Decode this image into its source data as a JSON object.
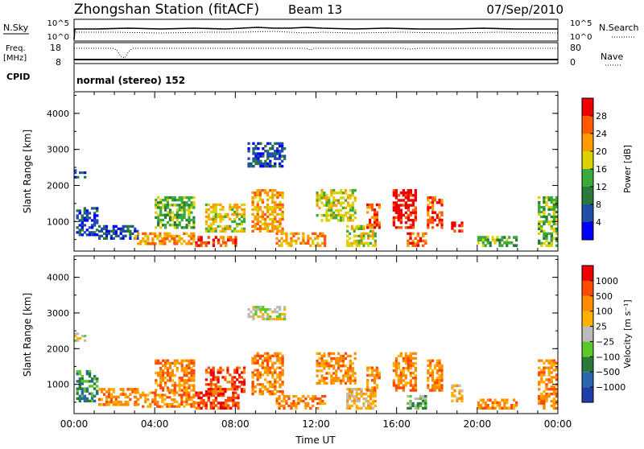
{
  "header": {
    "station": "Zhongshan Station (fitACF)",
    "beam": "Beam 13",
    "date": "07/Sep/2010"
  },
  "summary_panels": {
    "nsky_label": "N.Sky",
    "nsky_ticks": [
      "10^5",
      "10^0"
    ],
    "nsearch_label": "N.Search",
    "freq_label": "Freq.",
    "freq_unit": "[MHz]",
    "freq_ticks": [
      "18",
      "8"
    ],
    "nave_ticks": [
      "80",
      "0"
    ],
    "nave_label": "Nave",
    "cpid_label": "CPID",
    "cpid_text": "normal (stereo) 152"
  },
  "colors": {
    "power_scale": [
      "#0000ff",
      "#1f4fa8",
      "#2a7a3a",
      "#3aaa3a",
      "#ddd000",
      "#ff9a00",
      "#ff5a00",
      "#ee0000"
    ],
    "velocity_scale": [
      "#1f3fa8",
      "#2a66b0",
      "#2a7a3a",
      "#5ac82a",
      "#bbbbbb",
      "#ffb000",
      "#ff8a00",
      "#ff4a00",
      "#ee0000"
    ]
  },
  "chart_data": [
    {
      "type": "heatmap",
      "name": "power",
      "ylabel": "Slant Range [km]",
      "yticks": [
        "4000",
        "3000",
        "2000",
        "1000"
      ],
      "ylim": [
        180,
        4600
      ],
      "xlim": [
        0,
        24
      ],
      "xticks": [
        "00:00",
        "04:00",
        "08:00",
        "12:00",
        "16:00",
        "20:00",
        "00:00"
      ],
      "colorbar_label": "Power [dB]",
      "colorbar_ticks": [
        "28",
        "24",
        "20",
        "16",
        "12",
        "8",
        "4"
      ],
      "regions": [
        {
          "x": [
            0.0,
            0.6
          ],
          "y": [
            2200,
            2450
          ],
          "c": 1
        },
        {
          "x": [
            0.1,
            1.2
          ],
          "y": [
            600,
            1400
          ],
          "c": 1
        },
        {
          "x": [
            1.2,
            3.2
          ],
          "y": [
            500,
            900
          ],
          "c": 1
        },
        {
          "x": [
            3.0,
            6.0
          ],
          "y": [
            350,
            700
          ],
          "c": 5
        },
        {
          "x": [
            4.0,
            6.0
          ],
          "y": [
            800,
            1700
          ],
          "c": 3
        },
        {
          "x": [
            6.0,
            8.2
          ],
          "y": [
            300,
            600
          ],
          "c": 6
        },
        {
          "x": [
            6.5,
            8.5
          ],
          "y": [
            700,
            1500
          ],
          "c": 4
        },
        {
          "x": [
            8.6,
            10.5
          ],
          "y": [
            2500,
            3200
          ],
          "c": 1
        },
        {
          "x": [
            8.8,
            10.4
          ],
          "y": [
            700,
            1900
          ],
          "c": 5
        },
        {
          "x": [
            10.0,
            12.5
          ],
          "y": [
            300,
            700
          ],
          "c": 5
        },
        {
          "x": [
            12.0,
            14.0
          ],
          "y": [
            1000,
            1900
          ],
          "c": 4
        },
        {
          "x": [
            13.5,
            15.0
          ],
          "y": [
            300,
            900
          ],
          "c": 4
        },
        {
          "x": [
            14.5,
            15.2
          ],
          "y": [
            800,
            1500
          ],
          "c": 6
        },
        {
          "x": [
            15.8,
            17.0
          ],
          "y": [
            800,
            1900
          ],
          "c": 7
        },
        {
          "x": [
            16.5,
            17.5
          ],
          "y": [
            300,
            700
          ],
          "c": 6
        },
        {
          "x": [
            17.5,
            18.3
          ],
          "y": [
            800,
            1700
          ],
          "c": 6
        },
        {
          "x": [
            18.7,
            19.3
          ],
          "y": [
            700,
            1000
          ],
          "c": 7
        },
        {
          "x": [
            20.0,
            22.0
          ],
          "y": [
            300,
            600
          ],
          "c": 3
        },
        {
          "x": [
            23.0,
            24.0
          ],
          "y": [
            300,
            1700
          ],
          "c": 3
        }
      ]
    },
    {
      "type": "heatmap",
      "name": "velocity",
      "ylabel": "Slant Range [km]",
      "yticks": [
        "4000",
        "3000",
        "2000",
        "1000"
      ],
      "ylim": [
        180,
        4600
      ],
      "xlim": [
        0,
        24
      ],
      "xticks": [
        "00:00",
        "04:00",
        "08:00",
        "12:00",
        "16:00",
        "20:00",
        "00:00"
      ],
      "xlabel": "Time UT",
      "colorbar_label": "Velocity [m s⁻¹]",
      "colorbar_ticks": [
        "1000",
        "500",
        "100",
        "25",
        "−25",
        "−100",
        "−500",
        "−1000"
      ],
      "regions": [
        {
          "x": [
            0.0,
            0.6
          ],
          "y": [
            2200,
            2450
          ],
          "c": 4
        },
        {
          "x": [
            0.1,
            1.2
          ],
          "y": [
            500,
            1400
          ],
          "c": 2
        },
        {
          "x": [
            1.2,
            3.2
          ],
          "y": [
            400,
            900
          ],
          "c": 6
        },
        {
          "x": [
            3.0,
            6.0
          ],
          "y": [
            350,
            800
          ],
          "c": 6
        },
        {
          "x": [
            4.0,
            6.0
          ],
          "y": [
            800,
            1700
          ],
          "c": 6
        },
        {
          "x": [
            6.0,
            8.2
          ],
          "y": [
            300,
            800
          ],
          "c": 7
        },
        {
          "x": [
            6.5,
            8.5
          ],
          "y": [
            700,
            1500
          ],
          "c": 7
        },
        {
          "x": [
            8.6,
            10.5
          ],
          "y": [
            2800,
            3200
          ],
          "c": 4
        },
        {
          "x": [
            8.8,
            10.4
          ],
          "y": [
            700,
            1900
          ],
          "c": 6
        },
        {
          "x": [
            10.0,
            12.5
          ],
          "y": [
            300,
            700
          ],
          "c": 6
        },
        {
          "x": [
            12.0,
            14.0
          ],
          "y": [
            1000,
            1900
          ],
          "c": 6
        },
        {
          "x": [
            13.5,
            15.0
          ],
          "y": [
            300,
            900
          ],
          "c": 5
        },
        {
          "x": [
            14.5,
            15.2
          ],
          "y": [
            800,
            1500
          ],
          "c": 6
        },
        {
          "x": [
            15.8,
            17.0
          ],
          "y": [
            800,
            1900
          ],
          "c": 6
        },
        {
          "x": [
            16.5,
            17.5
          ],
          "y": [
            300,
            700
          ],
          "c": 3
        },
        {
          "x": [
            17.5,
            18.3
          ],
          "y": [
            800,
            1700
          ],
          "c": 6
        },
        {
          "x": [
            18.7,
            19.3
          ],
          "y": [
            500,
            1000
          ],
          "c": 5
        },
        {
          "x": [
            20.0,
            22.0
          ],
          "y": [
            300,
            600
          ],
          "c": 6
        },
        {
          "x": [
            23.0,
            24.0
          ],
          "y": [
            300,
            1700
          ],
          "c": 6
        }
      ]
    }
  ]
}
